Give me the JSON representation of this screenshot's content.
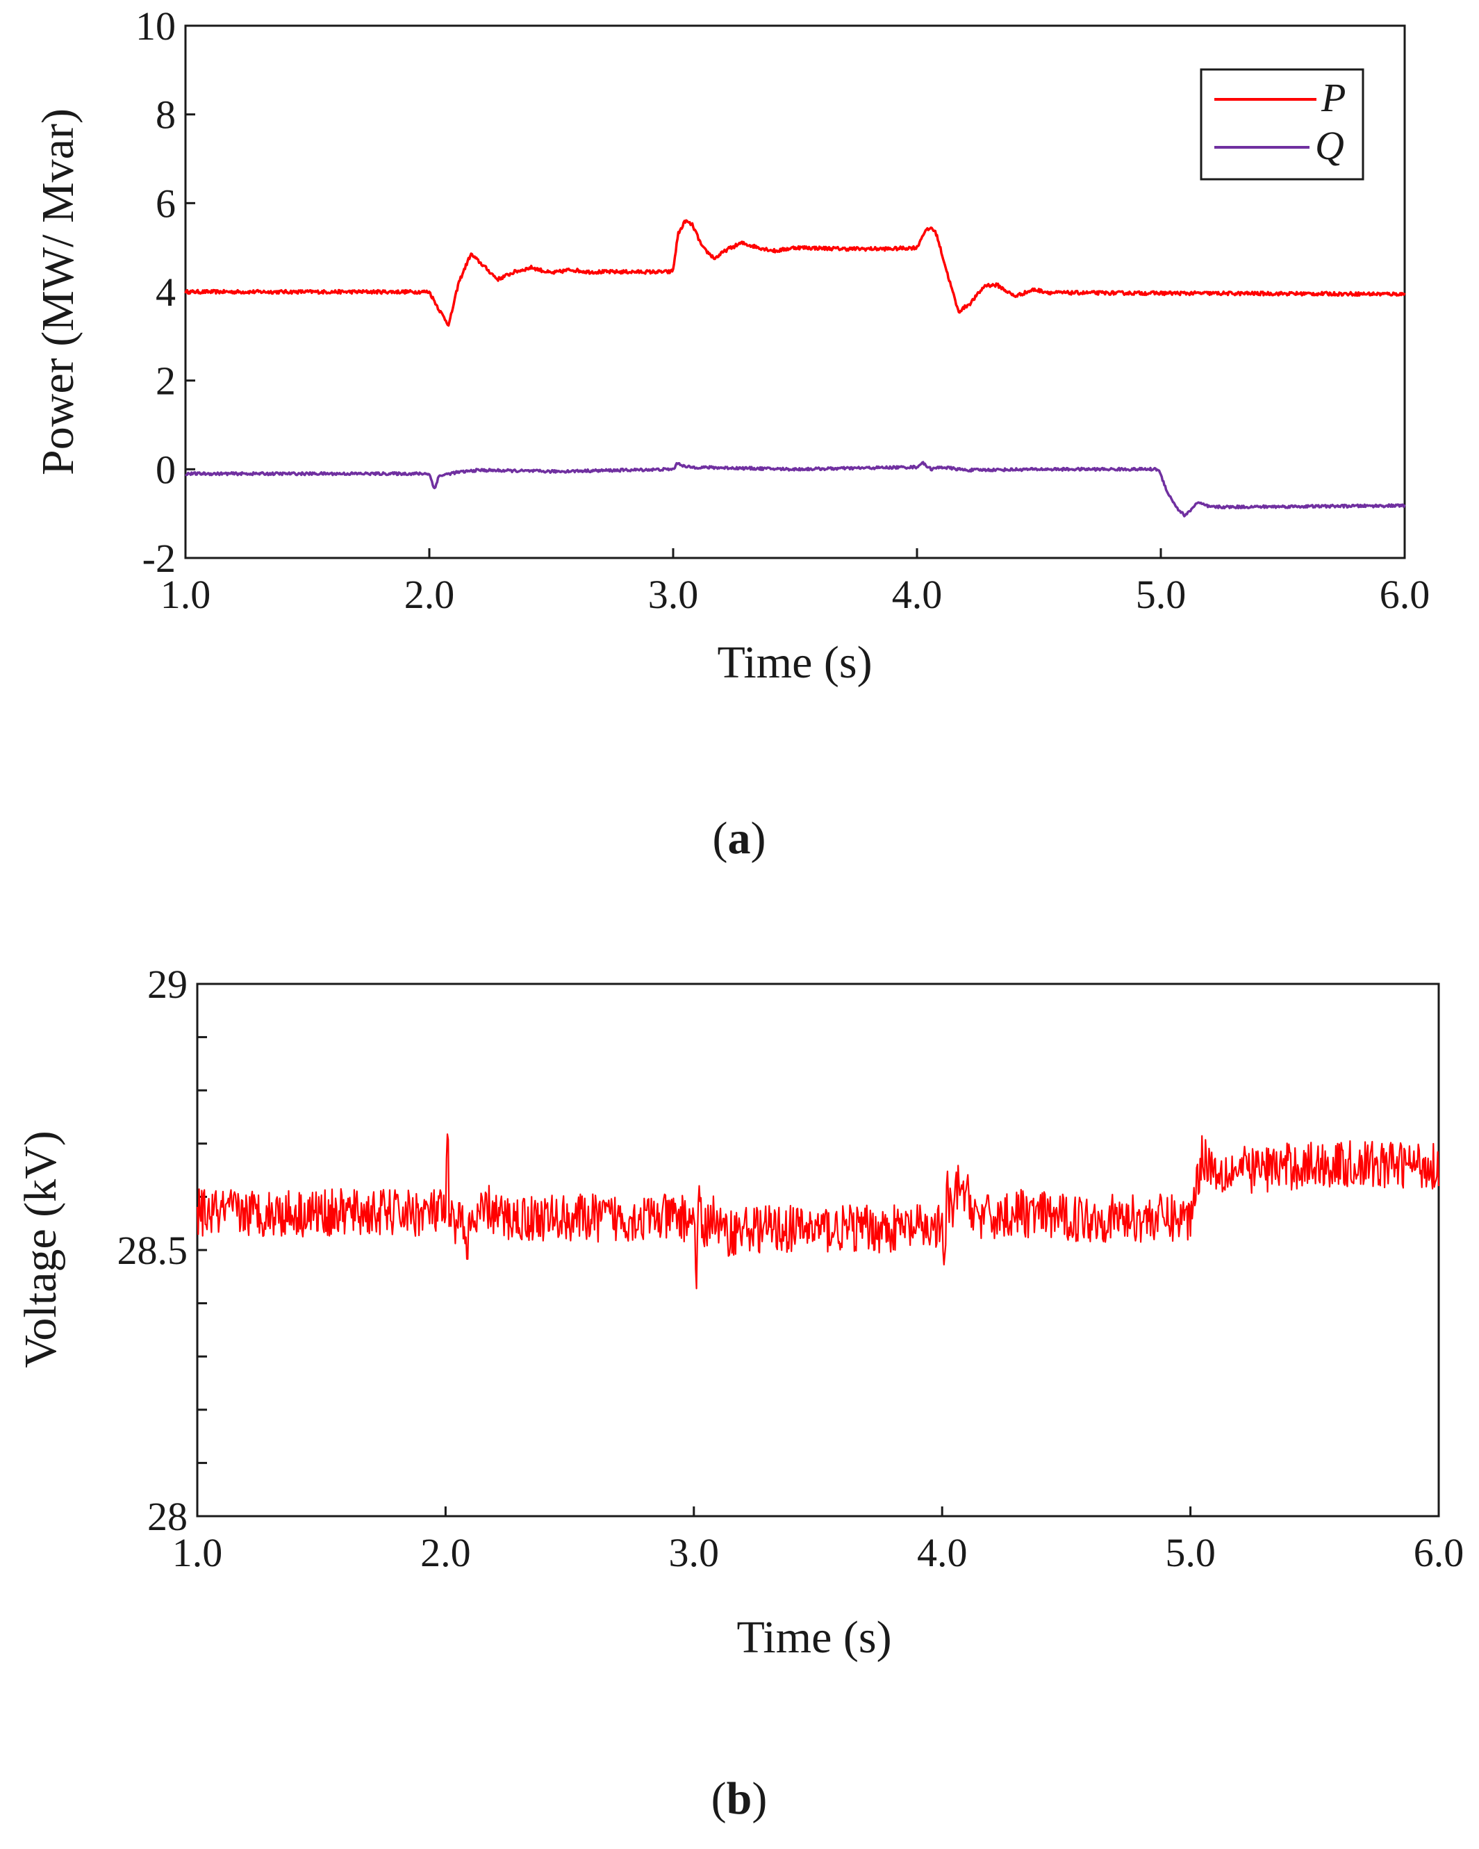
{
  "chart_data": [
    {
      "id": "a",
      "type": "line",
      "panel_label": "a",
      "xlabel": "Time (s)",
      "ylabel": "Power (MW/ Mvar)",
      "xlim": [
        1.0,
        6.0
      ],
      "ylim": [
        -2,
        10
      ],
      "xticks": [
        1.0,
        2.0,
        3.0,
        4.0,
        5.0,
        6.0
      ],
      "xtick_labels": [
        "1.0",
        "2.0",
        "3.0",
        "4.0",
        "5.0",
        "6.0"
      ],
      "yticks": [
        -2,
        0,
        2,
        4,
        6,
        8,
        10
      ],
      "ytick_labels": [
        "-2",
        "0",
        "2",
        "4",
        "6",
        "8",
        "10"
      ],
      "legend": {
        "position": "top-right"
      },
      "series": [
        {
          "name": "P",
          "color": "#ff0000",
          "noise": 0.04,
          "x": [
            1.0,
            2.0,
            2.04,
            2.08,
            2.12,
            2.17,
            2.22,
            2.28,
            2.35,
            2.42,
            2.5,
            2.58,
            2.65,
            2.8,
            2.99,
            3.0,
            3.02,
            3.05,
            3.08,
            3.12,
            3.17,
            3.22,
            3.28,
            3.35,
            3.42,
            3.5,
            3.7,
            3.9,
            4.0,
            4.03,
            4.06,
            4.08,
            4.12,
            4.17,
            4.22,
            4.28,
            4.33,
            4.4,
            4.48,
            4.55,
            5.0,
            6.0
          ],
          "y": [
            4.0,
            4.0,
            3.6,
            3.25,
            4.2,
            4.85,
            4.6,
            4.28,
            4.45,
            4.55,
            4.42,
            4.5,
            4.45,
            4.45,
            4.45,
            4.5,
            5.3,
            5.6,
            5.5,
            5.0,
            4.75,
            4.95,
            5.1,
            5.0,
            4.92,
            5.0,
            4.97,
            4.97,
            5.0,
            5.35,
            5.45,
            5.3,
            4.5,
            3.55,
            3.75,
            4.15,
            4.15,
            3.9,
            4.05,
            3.98,
            3.97,
            3.95
          ]
        },
        {
          "name": "Q",
          "color": "#7030a0",
          "noise": 0.03,
          "x": [
            1.0,
            2.0,
            2.02,
            2.04,
            2.1,
            2.2,
            2.5,
            3.0,
            3.02,
            3.05,
            3.5,
            4.0,
            4.02,
            4.06,
            4.1,
            4.2,
            4.5,
            4.99,
            5.03,
            5.07,
            5.1,
            5.15,
            5.2,
            5.3,
            6.0
          ],
          "y": [
            -0.1,
            -0.1,
            -0.45,
            -0.15,
            -0.08,
            -0.02,
            -0.05,
            0.0,
            0.15,
            0.05,
            0.0,
            0.05,
            0.15,
            0.0,
            0.05,
            -0.02,
            0.0,
            0.0,
            -0.55,
            -0.9,
            -1.05,
            -0.75,
            -0.85,
            -0.85,
            -0.82
          ]
        }
      ]
    },
    {
      "id": "b",
      "type": "line",
      "panel_label": "b",
      "xlabel": "Time (s)",
      "ylabel": "Voltage (kV)",
      "xlim": [
        1.0,
        6.0
      ],
      "ylim": [
        28,
        29
      ],
      "xticks": [
        1.0,
        2.0,
        3.0,
        4.0,
        5.0,
        6.0
      ],
      "xtick_labels": [
        "1.0",
        "2.0",
        "3.0",
        "4.0",
        "5.0",
        "6.0"
      ],
      "yticks": [
        28,
        28.5,
        29
      ],
      "ytick_labels": [
        "28",
        "28.5",
        "29"
      ],
      "yminor_ticks": [
        28.1,
        28.2,
        28.3,
        28.4,
        28.6,
        28.7,
        28.8,
        28.9
      ],
      "series": [
        {
          "name": "Voltage",
          "color": "#ff0000",
          "noise": 0.045,
          "x": [
            1.0,
            1.2,
            1.4,
            1.6,
            1.8,
            2.0,
            2.01,
            2.015,
            2.02,
            2.03,
            2.05,
            2.08,
            2.12,
            2.17,
            2.22,
            2.3,
            2.5,
            2.8,
            3.0,
            3.01,
            3.02,
            3.04,
            3.07,
            3.12,
            3.2,
            3.4,
            3.7,
            4.0,
            4.01,
            4.02,
            4.04,
            4.06,
            4.1,
            4.15,
            4.2,
            4.3,
            4.5,
            4.8,
            5.0,
            5.02,
            5.05,
            5.1,
            5.2,
            5.5,
            6.0
          ],
          "y": [
            28.57,
            28.57,
            28.57,
            28.57,
            28.57,
            28.57,
            28.74,
            28.49,
            28.58,
            28.53,
            28.58,
            28.52,
            28.55,
            28.58,
            28.56,
            28.56,
            28.56,
            28.56,
            28.56,
            28.46,
            28.58,
            28.53,
            28.57,
            28.53,
            28.54,
            28.54,
            28.54,
            28.54,
            28.46,
            28.62,
            28.55,
            28.62,
            28.6,
            28.56,
            28.56,
            28.57,
            28.56,
            28.56,
            28.56,
            28.62,
            28.68,
            28.65,
            28.65,
            28.66,
            28.66
          ]
        }
      ]
    }
  ]
}
